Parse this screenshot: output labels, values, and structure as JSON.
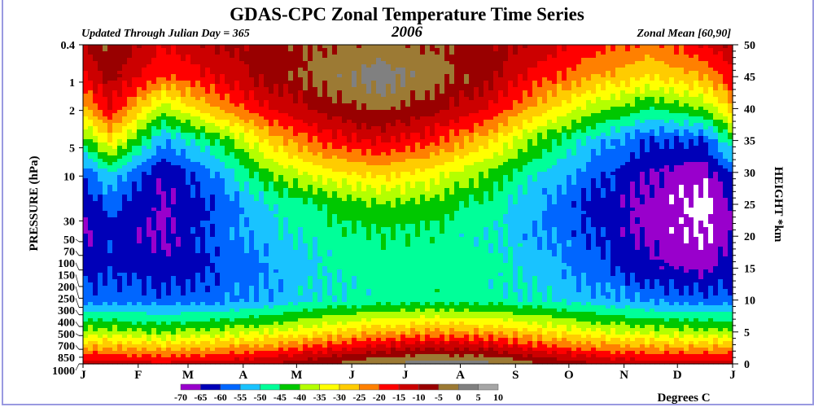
{
  "chart_data": {
    "type": "heatmap",
    "title": "GDAS-CPC Zonal Temperature Time Series",
    "subtitle_left": "Updated Through Julian Day = 365",
    "subtitle_center": "2006",
    "subtitle_right": "Zonal Mean [60,90]",
    "ylabel_left": "PRESSURE (hPa)",
    "ylabel_right": "HEIGHT *km",
    "colorbar_label": "Degrees C",
    "x_ticks": [
      "J",
      "F",
      "M",
      "A",
      "M",
      "J",
      "J",
      "A",
      "S",
      "O",
      "N",
      "D",
      "J"
    ],
    "x_tick_days": [
      0,
      31,
      59,
      90,
      120,
      151,
      181,
      212,
      243,
      273,
      304,
      334,
      365
    ],
    "pressure_ticks": [
      "0.4",
      "1",
      "2",
      "5",
      "10",
      "30",
      "50",
      "70",
      "100",
      "150",
      "200",
      "250",
      "300",
      "400",
      "500",
      "700",
      "850",
      "1000"
    ],
    "height_ticks": [
      "0",
      "5",
      "10",
      "15",
      "20",
      "25",
      "30",
      "35",
      "40",
      "45",
      "50"
    ],
    "height_range_km": [
      0,
      50
    ],
    "levels": [
      -70,
      -65,
      -60,
      -55,
      -50,
      -45,
      -40,
      -35,
      -30,
      -25,
      -20,
      -15,
      -10,
      -5,
      0,
      5,
      10
    ],
    "level_labels": [
      "-70",
      "-65",
      "-60",
      "-55",
      "-50",
      "-45",
      "-40",
      "-35",
      "-30",
      "-25",
      "-20",
      "-15",
      "-10",
      "-5",
      "0",
      "5",
      "10"
    ],
    "colors": [
      "#9900cc",
      "#0000b8",
      "#0066ff",
      "#19c3ff",
      "#00ff99",
      "#00c800",
      "#b4ff00",
      "#ffff00",
      "#ffcc00",
      "#ff8000",
      "#ff0000",
      "#cc0000",
      "#990000",
      "#9c7a34",
      "#808080",
      "#a6a6a6"
    ],
    "below_color": "#ffffff",
    "grid_heights_km": [
      0,
      5,
      10,
      15,
      20,
      25,
      30,
      35,
      40,
      45,
      50
    ],
    "grid_days": [
      15,
      45,
      74,
      105,
      135,
      166,
      196,
      227,
      258,
      288,
      319,
      349
    ],
    "temperature_grid": [
      [
        -12,
        -14,
        -12,
        -10,
        -5,
        0,
        3,
        2,
        -5,
        -10,
        -12,
        -12
      ],
      [
        -38,
        -40,
        -38,
        -35,
        -30,
        -26,
        -24,
        -25,
        -30,
        -34,
        -37,
        -38
      ],
      [
        -57,
        -58,
        -57,
        -54,
        -50,
        -48,
        -47,
        -48,
        -50,
        -53,
        -56,
        -58
      ],
      [
        -60,
        -64,
        -60,
        -55,
        -50,
        -47,
        -47,
        -48,
        -52,
        -58,
        -64,
        -66
      ],
      [
        -62,
        -66,
        -58,
        -52,
        -48,
        -46,
        -47,
        -49,
        -55,
        -60,
        -67,
        -70
      ],
      [
        -58,
        -66,
        -60,
        -50,
        -44,
        -40,
        -42,
        -47,
        -55,
        -62,
        -67,
        -72
      ],
      [
        -50,
        -64,
        -55,
        -40,
        -32,
        -28,
        -32,
        -40,
        -50,
        -58,
        -65,
        -68
      ],
      [
        -30,
        -55,
        -45,
        -28,
        -18,
        -14,
        -18,
        -28,
        -42,
        -52,
        -60,
        -60
      ],
      [
        -15,
        -38,
        -25,
        -15,
        -8,
        -4,
        -8,
        -15,
        -28,
        -38,
        -45,
        -40
      ],
      [
        -8,
        -20,
        -15,
        -8,
        -3,
        3,
        -2,
        -8,
        -18,
        -25,
        -30,
        -25
      ],
      [
        -5,
        -15,
        -10,
        -7,
        -5,
        -3,
        -5,
        -8,
        -12,
        -18,
        -22,
        -15
      ]
    ]
  }
}
